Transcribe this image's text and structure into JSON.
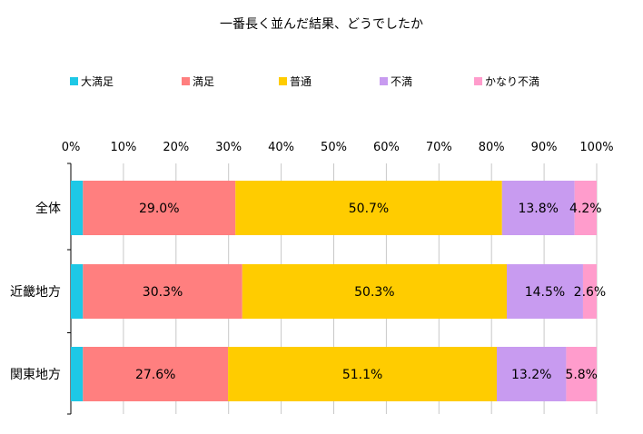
{
  "chart_data": {
    "type": "bar",
    "orientation": "horizontal",
    "stacked": "percent",
    "title": "一番長く並んだ結果、どうでしたか",
    "categories": [
      "全体",
      "近畿地方",
      "関東地方"
    ],
    "series": [
      {
        "name": "大満足",
        "color": "#1ec8e6",
        "values": [
          2.3,
          2.3,
          2.3
        ],
        "labels": [
          "",
          "",
          ""
        ]
      },
      {
        "name": "満足",
        "color": "#ff7f7f",
        "values": [
          29.0,
          30.3,
          27.6
        ],
        "labels": [
          "29.0%",
          "30.3%",
          "27.6%"
        ]
      },
      {
        "name": "普通",
        "color": "#ffcc00",
        "values": [
          50.7,
          50.3,
          51.1
        ],
        "labels": [
          "50.7%",
          "50.3%",
          "51.1%"
        ]
      },
      {
        "name": "不満",
        "color": "#c89bf0",
        "values": [
          13.8,
          14.5,
          13.2
        ],
        "labels": [
          "13.8%",
          "14.5%",
          "13.2%"
        ]
      },
      {
        "name": "かなり不満",
        "color": "#ff9ccc",
        "values": [
          4.2,
          2.6,
          5.8
        ],
        "labels": [
          "4.2%",
          "2.6%",
          "5.8%"
        ]
      }
    ],
    "xlim": [
      0,
      100
    ],
    "ticks": [
      "0%",
      "10%",
      "20%",
      "30%",
      "40%",
      "50%",
      "60%",
      "70%",
      "80%",
      "90%",
      "100%"
    ],
    "tick_position": "top",
    "grid": true,
    "legend_position": "top"
  }
}
